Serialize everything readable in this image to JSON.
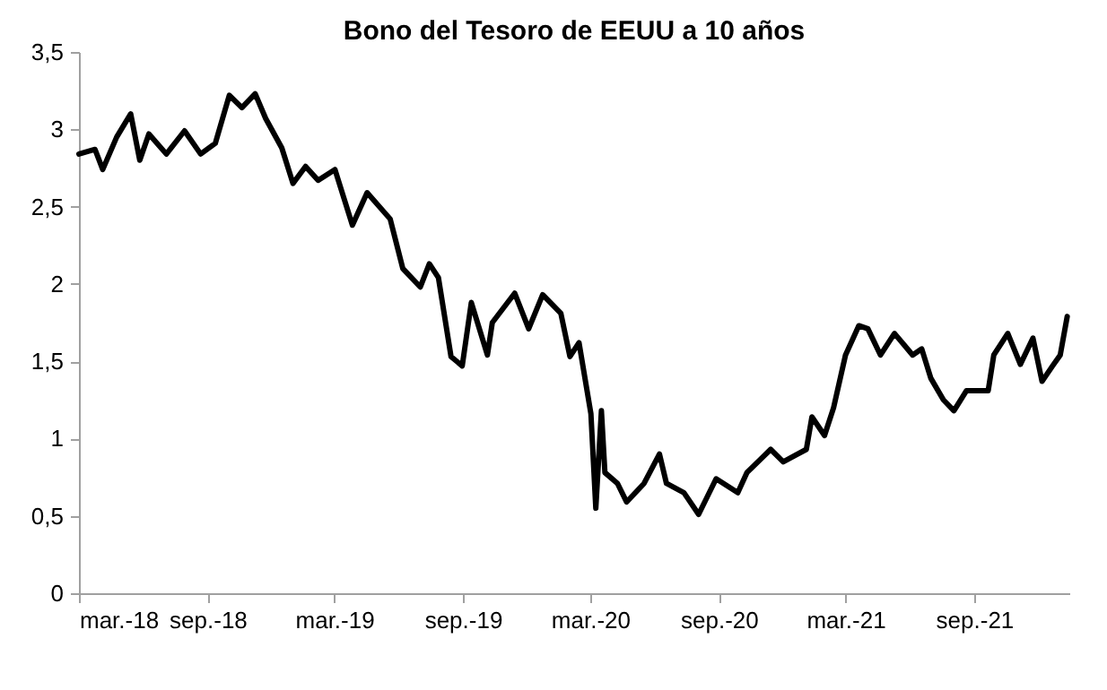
{
  "chart_data": {
    "type": "line",
    "title": "Bono del Tesoro de EEUU a 10 años",
    "x": [
      "2018-03-01",
      "2018-03-24",
      "2018-04-04",
      "2018-04-24",
      "2018-05-14",
      "2018-05-27",
      "2018-06-09",
      "2018-07-04",
      "2018-07-30",
      "2018-08-22",
      "2018-09-12",
      "2018-10-02",
      "2018-10-20",
      "2018-11-08",
      "2018-11-23",
      "2018-12-16",
      "2019-01-01",
      "2019-01-19",
      "2019-02-06",
      "2019-03-02",
      "2019-03-27",
      "2019-04-17",
      "2019-05-20",
      "2019-06-07",
      "2019-07-02",
      "2019-07-15",
      "2019-07-28",
      "2019-08-15",
      "2019-08-31",
      "2019-09-13",
      "2019-10-06",
      "2019-10-13",
      "2019-11-14",
      "2019-12-04",
      "2019-12-24",
      "2020-01-19",
      "2020-02-01",
      "2020-02-14",
      "2020-03-02",
      "2020-03-09",
      "2020-03-17",
      "2020-03-22",
      "2020-04-09",
      "2020-04-22",
      "2020-05-17",
      "2020-06-08",
      "2020-06-18",
      "2020-07-13",
      "2020-08-03",
      "2020-08-28",
      "2020-09-28",
      "2020-10-11",
      "2020-11-14",
      "2020-12-02",
      "2021-01-04",
      "2021-01-12",
      "2021-01-30",
      "2021-02-12",
      "2021-03-01",
      "2021-03-20",
      "2021-04-02",
      "2021-04-20",
      "2021-05-10",
      "2021-06-05",
      "2021-06-18",
      "2021-07-01",
      "2021-07-19",
      "2021-08-03",
      "2021-08-21",
      "2021-09-21",
      "2021-09-29",
      "2021-10-19",
      "2021-11-06",
      "2021-11-24",
      "2021-12-07",
      "2021-12-22",
      "2022-01-02",
      "2022-01-12"
    ],
    "series": [
      {
        "color": "#000000",
        "values": [
          2.84,
          2.87,
          2.74,
          2.95,
          3.1,
          2.8,
          2.97,
          2.84,
          2.99,
          2.84,
          2.91,
          3.22,
          3.14,
          3.23,
          3.07,
          2.88,
          2.65,
          2.76,
          2.67,
          2.74,
          2.38,
          2.59,
          2.42,
          2.1,
          1.98,
          2.13,
          2.04,
          1.53,
          1.47,
          1.88,
          1.54,
          1.75,
          1.94,
          1.71,
          1.93,
          1.81,
          1.53,
          1.62,
          1.16,
          0.55,
          1.18,
          0.78,
          0.71,
          0.59,
          0.71,
          0.9,
          0.71,
          0.65,
          0.51,
          0.74,
          0.65,
          0.78,
          0.93,
          0.85,
          0.93,
          1.14,
          1.02,
          1.2,
          1.54,
          1.73,
          1.71,
          1.54,
          1.68,
          1.54,
          1.58,
          1.39,
          1.25,
          1.18,
          1.31,
          1.31,
          1.54,
          1.68,
          1.48,
          1.65,
          1.37,
          1.47,
          1.54,
          1.79
        ]
      }
    ],
    "xlim": [
      "2018-03-01",
      "2022-01-15"
    ],
    "xticks": [
      {
        "value": "2018-03-01",
        "label": "mar.-18"
      },
      {
        "value": "2018-09-01",
        "label": "sep.-18"
      },
      {
        "value": "2019-03-01",
        "label": "mar.-19"
      },
      {
        "value": "2019-09-01",
        "label": "sep.-19"
      },
      {
        "value": "2020-03-01",
        "label": "mar.-20"
      },
      {
        "value": "2020-09-01",
        "label": "sep.-20"
      },
      {
        "value": "2021-03-01",
        "label": "mar.-21"
      },
      {
        "value": "2021-09-01",
        "label": "sep.-21"
      }
    ],
    "ylim": [
      0,
      3.5
    ],
    "yticks": [
      0,
      {
        "value": 0.5,
        "label": "0,5"
      },
      1,
      {
        "value": 1.5,
        "label": "1,5"
      },
      2,
      {
        "value": 2.5,
        "label": "2,5"
      },
      3,
      {
        "value": 3.5,
        "label": "3,5"
      }
    ],
    "grid": false,
    "marker": "none",
    "line_style": "solid"
  }
}
